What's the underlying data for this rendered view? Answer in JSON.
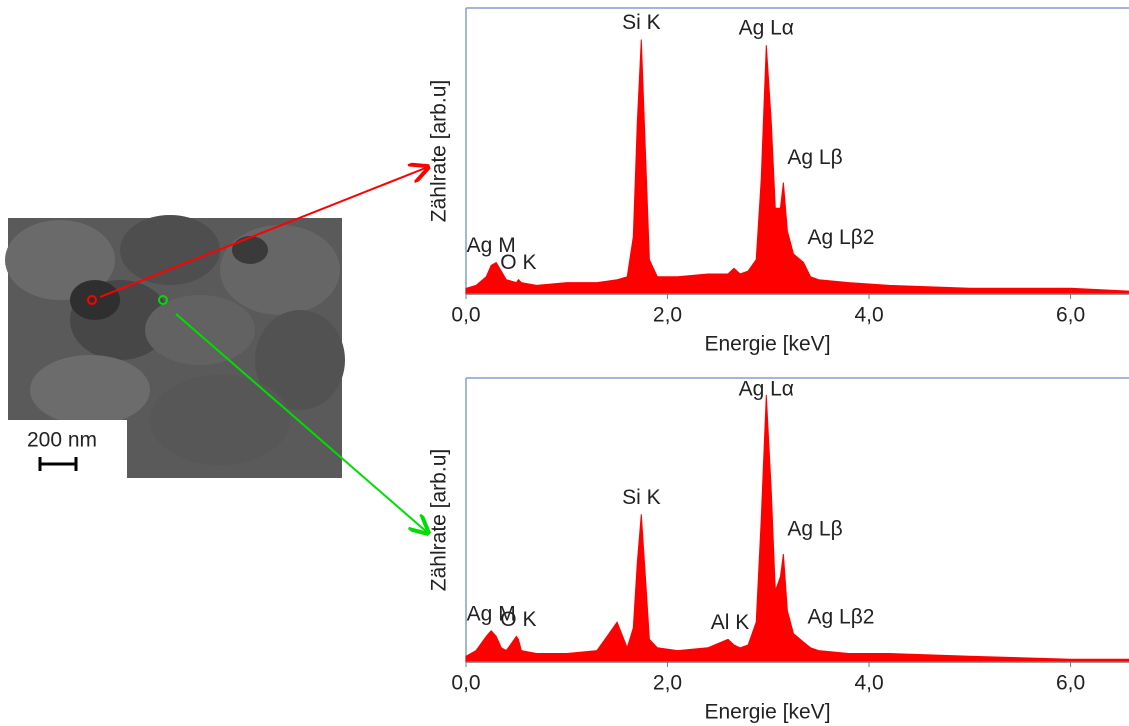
{
  "image": {
    "scale_label": "200 nm"
  },
  "chart_data": [
    {
      "type": "area",
      "color": "#ff0000",
      "x_label": "Energie [keV]",
      "y_label": "Zählrate [arb.u]",
      "xlim": [
        0,
        6.58
      ],
      "ylim": [
        0,
        100
      ],
      "xticks": [
        {
          "value": 0,
          "label": "0,0"
        },
        {
          "value": 2,
          "label": "2,0"
        },
        {
          "value": 4,
          "label": "4,0"
        },
        {
          "value": 6,
          "label": "6,0"
        }
      ],
      "x": [
        0,
        0.1,
        0.2,
        0.25,
        0.3,
        0.35,
        0.4,
        0.5,
        0.52,
        0.55,
        0.7,
        1.0,
        1.3,
        1.5,
        1.6,
        1.66,
        1.7,
        1.74,
        1.78,
        1.82,
        1.9,
        2.1,
        2.4,
        2.6,
        2.66,
        2.72,
        2.8,
        2.88,
        2.93,
        2.98,
        3.03,
        3.07,
        3.12,
        3.15,
        3.19,
        3.25,
        3.35,
        3.42,
        3.5,
        3.8,
        4.2,
        5.0,
        6.0,
        6.58
      ],
      "values": [
        2,
        3,
        6,
        10,
        11,
        8,
        5,
        4,
        5,
        4,
        3,
        4,
        4,
        5,
        6,
        20,
        60,
        89,
        50,
        12,
        6,
        6,
        7,
        7,
        9,
        7,
        8,
        12,
        40,
        87,
        60,
        30,
        30,
        39,
        22,
        14,
        11,
        6,
        5,
        4,
        3,
        2,
        2,
        1
      ],
      "annotations": [
        {
          "text": "Ag M",
          "x": 0.25
        },
        {
          "text": "O K",
          "x": 0.52
        },
        {
          "text": "Si K",
          "x": 1.74
        },
        {
          "text": "Ag Lα",
          "x": 2.98
        },
        {
          "text": "Ag Lβ",
          "x": 3.15
        },
        {
          "text": "Ag Lβ2",
          "x": 3.35
        }
      ]
    },
    {
      "type": "area",
      "color": "#ff0000",
      "x_label": "Energie [keV]",
      "y_label": "Zählrate [arb.u]",
      "xlim": [
        0,
        6.58
      ],
      "ylim": [
        0,
        100
      ],
      "xticks": [
        {
          "value": 0,
          "label": "0,0"
        },
        {
          "value": 2,
          "label": "2,0"
        },
        {
          "value": 4,
          "label": "4,0"
        },
        {
          "value": 6,
          "label": "6,0"
        }
      ],
      "x": [
        0,
        0.1,
        0.2,
        0.25,
        0.3,
        0.35,
        0.4,
        0.5,
        0.52,
        0.55,
        0.7,
        1.0,
        1.3,
        1.5,
        1.6,
        1.66,
        1.7,
        1.74,
        1.78,
        1.82,
        1.9,
        2.1,
        2.4,
        2.6,
        2.66,
        2.72,
        2.8,
        2.88,
        2.93,
        2.98,
        3.03,
        3.07,
        3.12,
        3.15,
        3.19,
        3.25,
        3.35,
        3.42,
        3.5,
        3.8,
        4.2,
        5.0,
        6.0,
        6.58
      ],
      "values": [
        2,
        4,
        9,
        11,
        9,
        5,
        4,
        9,
        8,
        4,
        3,
        3,
        4,
        14,
        5,
        12,
        35,
        52,
        30,
        8,
        5,
        4,
        5,
        8,
        6,
        5,
        6,
        14,
        50,
        94,
        60,
        25,
        30,
        38,
        18,
        10,
        7,
        5,
        4,
        3,
        3,
        2,
        1,
        1
      ],
      "annotations": [
        {
          "text": "Ag M",
          "x": 0.25
        },
        {
          "text": "O K",
          "x": 0.52
        },
        {
          "text": "Si K",
          "x": 1.74
        },
        {
          "text": "Al K",
          "x": 2.62
        },
        {
          "text": "Ag Lα",
          "x": 2.98
        },
        {
          "text": "Ag Lβ",
          "x": 3.15
        },
        {
          "text": "Ag Lβ2",
          "x": 3.35
        }
      ]
    }
  ]
}
